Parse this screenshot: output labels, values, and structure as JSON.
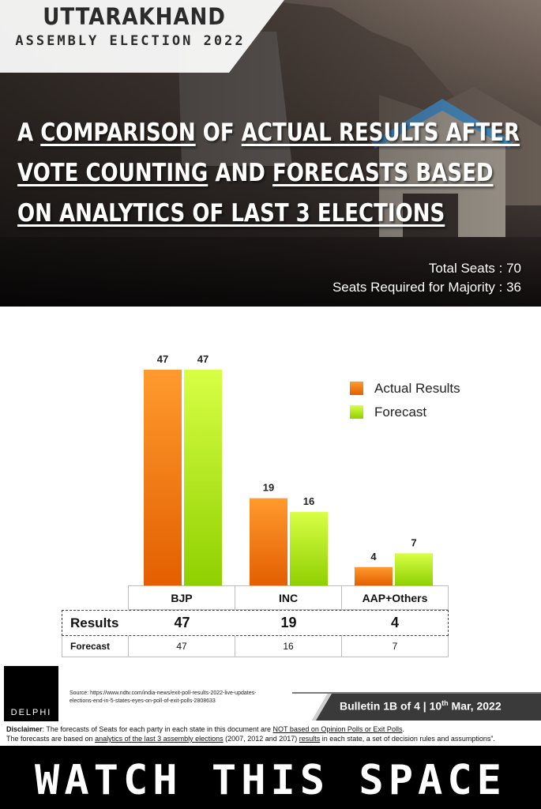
{
  "header": {
    "state": "UTTARAKHAND",
    "election": "ASSEMBLY ELECTION 2022",
    "headline": {
      "line1": [
        {
          "t": "A ",
          "u": false
        },
        {
          "t": "COMPARISON",
          "u": true
        },
        {
          "t": " OF ",
          "u": false
        },
        {
          "t": "ACTUAL RESULTS AFTER",
          "u": true
        }
      ],
      "line2": [
        {
          "t": "VOTE COUNTING",
          "u": true
        },
        {
          "t": " AND ",
          "u": false
        },
        {
          "t": "FORECASTS BASED",
          "u": true
        }
      ],
      "line3": [
        {
          "t": "ON ANALYTICS OF LAST 3 ELECTIONS",
          "u": true
        }
      ]
    },
    "total_seats": "Total Seats : 70",
    "majority": "Seats Required for Majority : 36"
  },
  "colors": {
    "actual_top": "#ff9a2e",
    "actual_bottom": "#e35f00",
    "forecast_top": "#d8ff45",
    "forecast_bottom": "#8fd000"
  },
  "chart_data": {
    "type": "bar",
    "categories": [
      "BJP",
      "INC",
      "AAP+Others"
    ],
    "series": [
      {
        "name": "Actual Results",
        "values": [
          47,
          19,
          4
        ]
      },
      {
        "name": "Forecast",
        "values": [
          47,
          16,
          7
        ]
      }
    ],
    "ylim": [
      0,
      47
    ],
    "grid": false,
    "legend_position": "top-right"
  },
  "table": {
    "headers": [
      "BJP",
      "INC",
      "AAP+Others"
    ],
    "results_label": "Results",
    "results": [
      "47",
      "19",
      "4"
    ],
    "forecast_label": "Forecast",
    "forecast": [
      "47",
      "16",
      "7"
    ]
  },
  "footer": {
    "logo": "DELPHI",
    "source_line1": "Source: https://www.ndtv.com/india-news/exit-poll-results-2022-live-updates-",
    "source_line2": "elections-end-in-5-states-eyes-on-poll-of-exit-polls-2808633",
    "bulletin_prefix": "Bulletin 1B of 4 | 10",
    "bulletin_sup": "th",
    "bulletin_suffix": " Mar, 2022",
    "disclaimer_label": "Disclaimer",
    "disclaimer_1a": ": The forecasts of Seats for each party in each state in this document are ",
    "disclaimer_1b": "NOT based on Opinion Polls or Exit Polls",
    "disclaimer_1c": ".",
    "disclaimer_2a": "The forecasts are based on ",
    "disclaimer_2b": "analytics of the last 3 assembly elections",
    "disclaimer_2c": " (2007, 2012 and 2017) ",
    "disclaimer_2d": "results",
    "disclaimer_2e": " in each state, a set of decision rules and assumptions”.",
    "watch": "WATCH THIS SPACE"
  }
}
